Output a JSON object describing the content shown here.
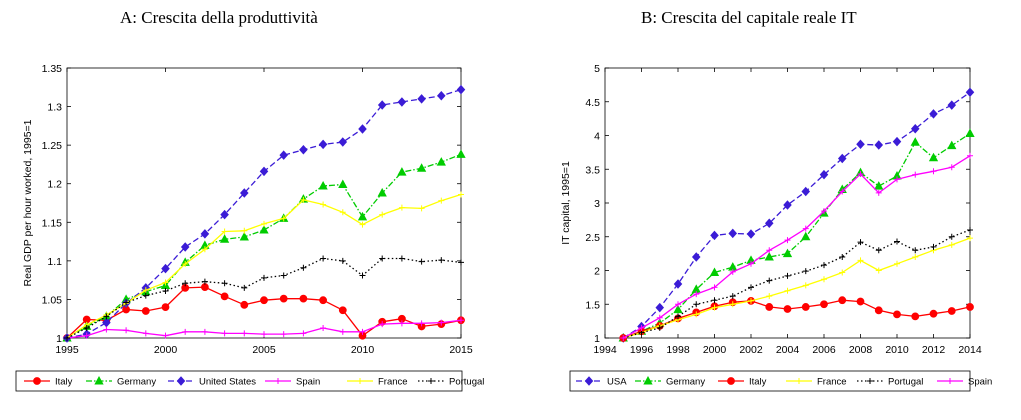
{
  "chart_data": [
    {
      "type": "line",
      "title": "A: Crescita della produttività",
      "xlabel": "",
      "ylabel": "Real GDP per hour worked, 1995=1",
      "xlim": [
        1995,
        2015
      ],
      "ylim": [
        1,
        1.35
      ],
      "xticks": [
        1995,
        2000,
        2005,
        2010,
        2015
      ],
      "yticks": [
        1,
        1.05,
        1.1,
        1.15,
        1.2,
        1.25,
        1.3,
        1.35
      ],
      "ytick_labels": [
        "1",
        "1.05",
        "1.1",
        "1.15",
        "1.2",
        "1.25",
        "1.3",
        "1.35"
      ],
      "grid": false,
      "legend_position": "bottom",
      "x": [
        1995,
        1996,
        1997,
        1998,
        1999,
        2000,
        2001,
        2002,
        2003,
        2004,
        2005,
        2006,
        2007,
        2008,
        2009,
        2010,
        2011,
        2012,
        2013,
        2014,
        2015
      ],
      "series": [
        {
          "name": "Italy",
          "color": "#ff0000",
          "dash": "solid",
          "marker": "circle",
          "values": [
            1.0,
            1.024,
            1.023,
            1.037,
            1.035,
            1.04,
            1.065,
            1.066,
            1.054,
            1.043,
            1.049,
            1.051,
            1.051,
            1.049,
            1.036,
            1.003,
            1.021,
            1.025,
            1.015,
            1.018,
            1.023
          ]
        },
        {
          "name": "Germany",
          "color": "#00cc00",
          "dash": "dashdot",
          "marker": "triangle",
          "values": [
            1.0,
            1.015,
            1.028,
            1.05,
            1.06,
            1.068,
            1.098,
            1.12,
            1.128,
            1.131,
            1.14,
            1.155,
            1.18,
            1.197,
            1.199,
            1.157,
            1.188,
            1.215,
            1.22,
            1.228,
            1.238
          ]
        },
        {
          "name": "United States",
          "color": "#3b1cd6",
          "dash": "dashed",
          "marker": "diamond",
          "values": [
            1.0,
            1.005,
            1.02,
            1.045,
            1.065,
            1.09,
            1.118,
            1.135,
            1.16,
            1.188,
            1.216,
            1.237,
            1.244,
            1.251,
            1.254,
            1.271,
            1.302,
            1.306,
            1.31,
            1.314,
            1.322
          ]
        },
        {
          "name": "Spain",
          "color": "#ff00ff",
          "dash": "solid",
          "marker": "plus",
          "values": [
            1.0,
            1.003,
            1.011,
            1.01,
            1.006,
            1.003,
            1.008,
            1.008,
            1.006,
            1.006,
            1.005,
            1.005,
            1.006,
            1.013,
            1.008,
            1.008,
            1.018,
            1.019,
            1.019,
            1.02,
            1.023
          ]
        },
        {
          "name": "France",
          "color": "#ffff00",
          "dash": "solid",
          "marker": "plus",
          "values": [
            1.0,
            1.017,
            1.03,
            1.045,
            1.062,
            1.072,
            1.096,
            1.115,
            1.138,
            1.139,
            1.148,
            1.155,
            1.179,
            1.173,
            1.163,
            1.147,
            1.16,
            1.169,
            1.168,
            1.178,
            1.186
          ]
        },
        {
          "name": "Portugal",
          "color": "#000000",
          "dash": "dotted",
          "marker": "plus",
          "values": [
            1.0,
            1.013,
            1.028,
            1.046,
            1.055,
            1.061,
            1.071,
            1.073,
            1.071,
            1.065,
            1.078,
            1.081,
            1.091,
            1.103,
            1.1,
            1.081,
            1.103,
            1.103,
            1.099,
            1.101,
            1.098
          ]
        }
      ]
    },
    {
      "type": "line",
      "title": "B: Crescita del capitale reale IT",
      "xlabel": "",
      "ylabel": "IT capital, 1995=1",
      "xlim": [
        1994,
        2014
      ],
      "ylim": [
        1,
        5
      ],
      "xticks": [
        1994,
        1996,
        1998,
        2000,
        2002,
        2004,
        2006,
        2008,
        2010,
        2012,
        2014
      ],
      "yticks": [
        1,
        1.5,
        2,
        2.5,
        3,
        3.5,
        4,
        4.5,
        5
      ],
      "ytick_labels": [
        "1",
        "1.5",
        "2",
        "2.5",
        "3",
        "3.5",
        "4",
        "4.5",
        "5"
      ],
      "grid": false,
      "legend_position": "bottom",
      "x": [
        1995,
        1996,
        1997,
        1998,
        1999,
        2000,
        2001,
        2002,
        2003,
        2004,
        2005,
        2006,
        2007,
        2008,
        2009,
        2010,
        2011,
        2012,
        2013,
        2014
      ],
      "series": [
        {
          "name": "USA",
          "color": "#3b1cd6",
          "dash": "dashed",
          "marker": "diamond",
          "values": [
            1.0,
            1.17,
            1.45,
            1.8,
            2.2,
            2.52,
            2.55,
            2.54,
            2.7,
            2.97,
            3.17,
            3.42,
            3.66,
            3.87,
            3.86,
            3.91,
            4.1,
            4.32,
            4.45,
            4.64
          ]
        },
        {
          "name": "Germany",
          "color": "#00cc00",
          "dash": "dashdot",
          "marker": "triangle",
          "values": [
            1.0,
            1.1,
            1.22,
            1.42,
            1.72,
            1.97,
            2.05,
            2.15,
            2.2,
            2.25,
            2.5,
            2.85,
            3.2,
            3.45,
            3.25,
            3.4,
            3.9,
            3.67,
            3.85,
            4.03
          ]
        },
        {
          "name": "Italy",
          "color": "#ff0000",
          "dash": "solid",
          "marker": "circle",
          "values": [
            1.0,
            1.1,
            1.18,
            1.29,
            1.38,
            1.47,
            1.53,
            1.55,
            1.46,
            1.43,
            1.46,
            1.5,
            1.56,
            1.54,
            1.41,
            1.35,
            1.32,
            1.36,
            1.4,
            1.46
          ]
        },
        {
          "name": "France",
          "color": "#ffff00",
          "dash": "solid",
          "marker": "plus",
          "values": [
            1.0,
            1.08,
            1.18,
            1.27,
            1.35,
            1.45,
            1.5,
            1.55,
            1.62,
            1.7,
            1.78,
            1.87,
            1.97,
            2.15,
            2.0,
            2.1,
            2.2,
            2.3,
            2.38,
            2.48
          ]
        },
        {
          "name": "Portugal",
          "color": "#000000",
          "dash": "dotted",
          "marker": "plus",
          "values": [
            1.0,
            1.08,
            1.15,
            1.32,
            1.5,
            1.56,
            1.62,
            1.75,
            1.85,
            1.92,
            1.99,
            2.08,
            2.2,
            2.42,
            2.3,
            2.43,
            2.3,
            2.35,
            2.5,
            2.6
          ]
        },
        {
          "name": "Spain",
          "color": "#ff00ff",
          "dash": "solid",
          "marker": "plus",
          "values": [
            1.0,
            1.15,
            1.3,
            1.5,
            1.65,
            1.75,
            1.98,
            2.1,
            2.3,
            2.45,
            2.62,
            2.88,
            3.17,
            3.43,
            3.15,
            3.35,
            3.42,
            3.47,
            3.53,
            3.7
          ]
        }
      ]
    }
  ]
}
